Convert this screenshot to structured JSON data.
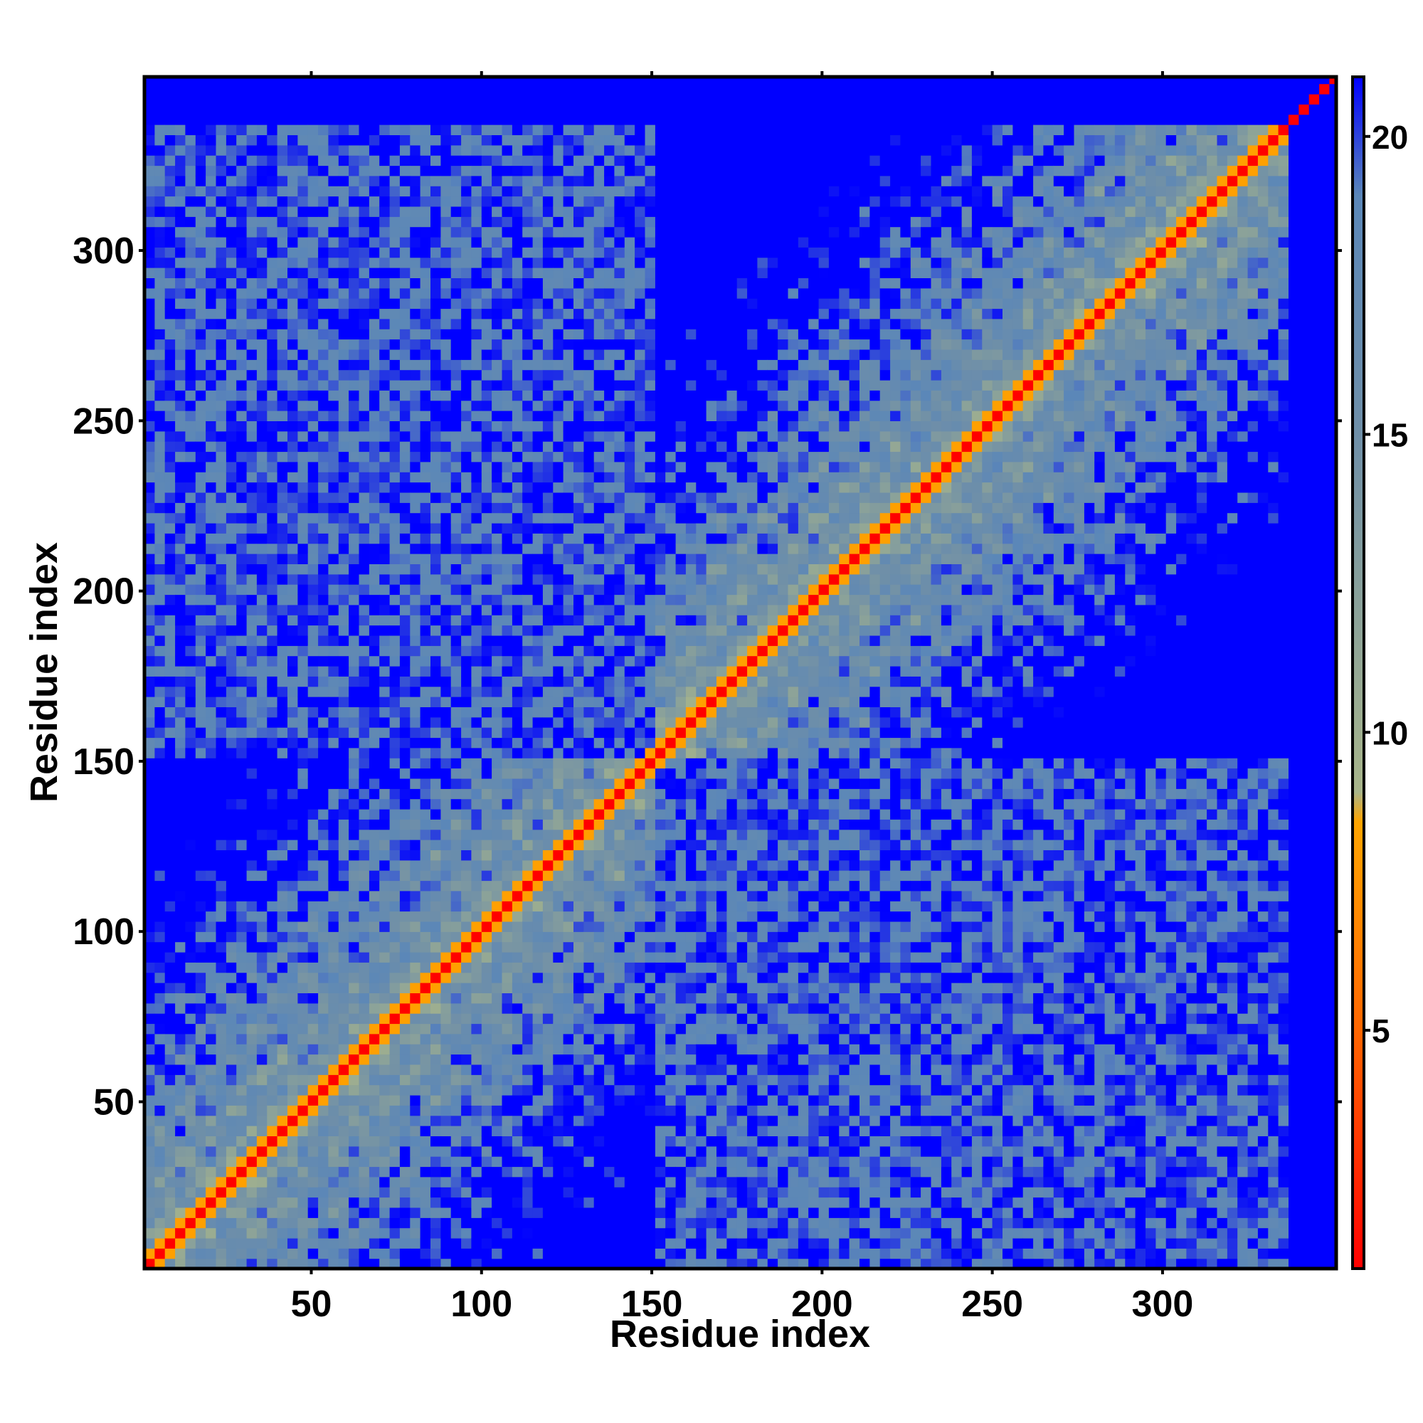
{
  "chart_data": {
    "type": "heatmap",
    "title": "",
    "xlabel": "Residue index",
    "ylabel": "Residue index",
    "xlim": [
      1,
      351
    ],
    "ylim": [
      1,
      351
    ],
    "x_ticks": [
      50,
      100,
      150,
      200,
      250,
      300
    ],
    "y_ticks": [
      50,
      100,
      150,
      200,
      250,
      300
    ],
    "x_tick_labels": [
      "50",
      "100",
      "150",
      "200",
      "250",
      "300"
    ],
    "y_tick_labels": [
      "50",
      "100",
      "150",
      "200",
      "250",
      "300"
    ],
    "grid": false,
    "legend": "none",
    "description_of_data": "Symmetric residue-residue distance map (two domains: residues 1-150 and 151-351) with contact diagonal",
    "domains": [
      {
        "start": 1,
        "end": 150
      },
      {
        "start": 151,
        "end": 351
      }
    ],
    "diagonal_value": 1,
    "background_value": 21,
    "colorbar": {
      "range": [
        1,
        21
      ],
      "ticks": [
        5,
        10,
        15,
        20
      ],
      "tick_labels": [
        "5",
        "10",
        "15",
        "20"
      ],
      "position": "right",
      "stops": [
        {
          "value": 1,
          "color": "#ff0000"
        },
        {
          "value": 5,
          "color": "#ff6600"
        },
        {
          "value": 8.5,
          "color": "#ffa500"
        },
        {
          "value": 9,
          "color": "#a8b58a"
        },
        {
          "value": 15,
          "color": "#6f8fa8"
        },
        {
          "value": 19,
          "color": "#5b87b8"
        },
        {
          "value": 21,
          "color": "#0000ff"
        }
      ]
    }
  }
}
